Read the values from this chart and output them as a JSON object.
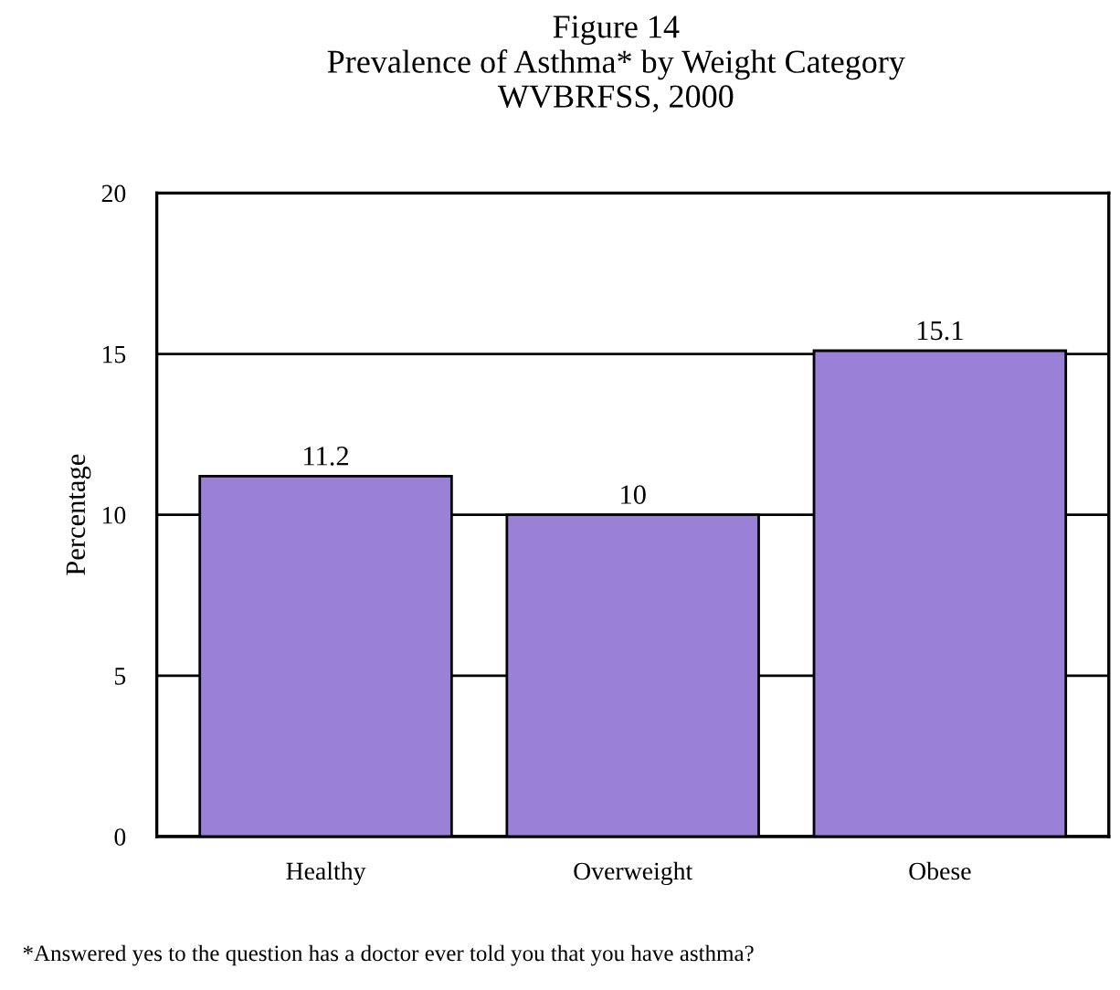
{
  "chart_data": {
    "type": "bar",
    "title": "Figure 14\nPrevalence of Asthma* by Weight Category\nWVBRFSS, 2000",
    "ylabel": "Percentage",
    "categories": [
      "Healthy",
      "Overweight",
      "Obese"
    ],
    "values": [
      11.2,
      10,
      15.1
    ],
    "color": "#9b80d8",
    "data_labels": true,
    "ylim": [
      0,
      20
    ],
    "yticks": [
      0,
      5,
      10,
      15,
      20
    ],
    "grid": "y",
    "annotations": [
      "*Answered yes to the question has a doctor ever told you that you have asthma?"
    ]
  }
}
